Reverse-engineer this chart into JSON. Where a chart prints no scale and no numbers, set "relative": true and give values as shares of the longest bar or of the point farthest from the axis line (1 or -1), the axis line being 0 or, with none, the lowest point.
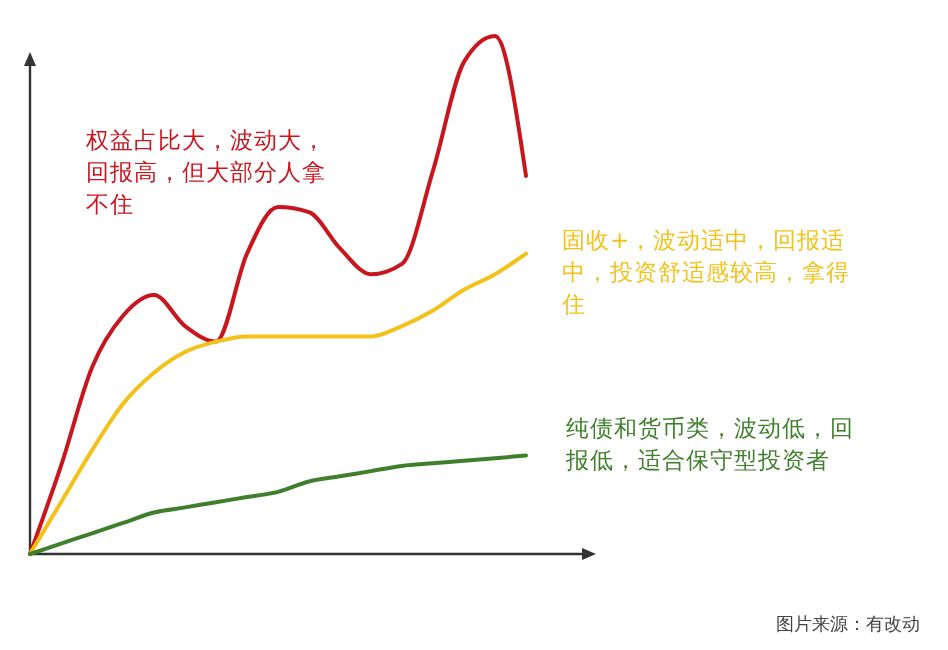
{
  "chart_data": {
    "type": "line",
    "relative": true,
    "categories": [
      null,
      null,
      null,
      null,
      null,
      null,
      null,
      null,
      null,
      null,
      null,
      null,
      null,
      null,
      null,
      null,
      null
    ],
    "series": [
      {
        "color": "#c8161e",
        "values": [
          0,
          0.17,
          0.36,
          0.46,
          0.5,
          0.44,
          0.41,
          0.58,
          0.67,
          0.66,
          0.59,
          0.54,
          0.56,
          0.74,
          0.95,
          1,
          0.73
        ]
      },
      {
        "color": "#f2c21b",
        "values": [
          0,
          0.1,
          0.2,
          0.29,
          0.35,
          0.39,
          0.41,
          0.42,
          0.42,
          0.42,
          0.42,
          0.42,
          0.44,
          0.47,
          0.51,
          0.54,
          0.58
        ]
      },
      {
        "color": "#3f7f2c",
        "values": [
          0,
          0.02,
          0.04,
          0.06,
          0.08,
          0.09,
          0.1,
          0.11,
          0.12,
          0.14,
          0.15,
          0.16,
          0.17,
          0.175,
          0.18,
          0.185,
          0.19
        ]
      }
    ],
    "annotations": [
      "权益占比大，波动大，回报高，但大部分人拿不住",
      "固收+，波动适中，回报适中，投资舒适感较高，拿得住",
      "纯债和货币类，波动低，回报低，适合保守型投资者",
      "图片来源：有改动"
    ]
  }
}
